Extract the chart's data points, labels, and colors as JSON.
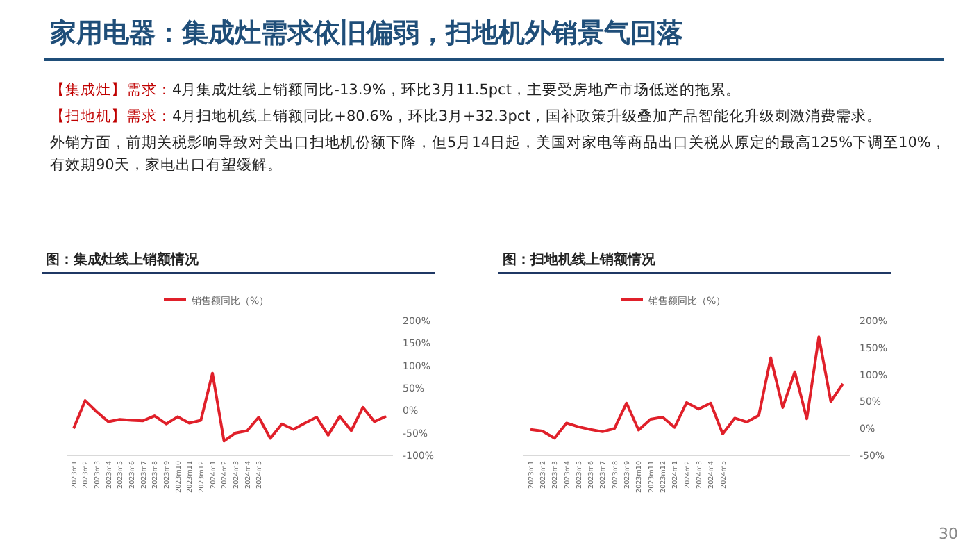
{
  "chart_data": [
    {
      "type": "other",
      "title": "家用电器：集成灶需求依旧偏弱，扫地机外销景气回落",
      "annotations": [
        "【集成灶】需求：4月集成灶线上销额同比-13.9%，环比3月11.5pct，主要受房地产市场低迷的拖累。",
        "【扫地机】需求：4月扫地机线上销额同比+80.6%，环比3月+32.3pct，国补政策升级叠加产品智能化升级刺激消费需求。",
        "外销方面，前期关税影响导致对美出口扫地机份额下降，但5月14日起，美国对家电等商品出口关税从原定的最高125%下调至10%，有效期90天，家电出口有望缓解。",
        "30"
      ]
    },
    {
      "type": "line",
      "title": "图：集成灶线上销额情况",
      "categories": [
        "2023m1",
        "2023m2",
        "2023m3",
        "2023m4",
        "2023m5",
        "2023m6",
        "2023m7",
        "2023m8",
        "2023m9",
        "2023m10",
        "2023m11",
        "2023m12",
        "2024m1",
        "2024m2",
        "2024m3",
        "2024m4",
        "2024m5",
        null,
        null,
        null,
        null,
        null,
        null,
        null,
        null,
        null,
        null,
        null
      ],
      "series": [
        {
          "name": "销售额同比（%）",
          "color": "#e0202a",
          "values": [
            -40,
            22,
            -3,
            -25,
            -20,
            -22,
            -23,
            -12,
            -30,
            -14,
            -28,
            -22,
            83,
            -68,
            -50,
            -45,
            -15,
            -62,
            -30,
            -42,
            -28,
            -15,
            -55,
            -13,
            -45,
            7,
            -25,
            -13
          ]
        }
      ],
      "ylim": [
        -100,
        200
      ],
      "yticks": [
        {
          "value": -100,
          "label": "-100%"
        },
        {
          "value": -50,
          "label": "-50%"
        },
        {
          "value": 0,
          "label": "0%"
        },
        {
          "value": 50,
          "label": "50%"
        },
        {
          "value": 100,
          "label": "100%"
        },
        {
          "value": 150,
          "label": "150%"
        },
        {
          "value": 200,
          "label": "200%"
        }
      ],
      "grid": false,
      "legend": "top",
      "marker": "none"
    },
    {
      "type": "line",
      "title": "图：扫地机线上销额情况",
      "categories": [
        "2023m1",
        "2023m2",
        "2023m3",
        "2023m4",
        "2023m5",
        "2023m6",
        "2023m7",
        "2023m8",
        "2023m9",
        "2023m10",
        "2023m11",
        "2023m12",
        "2024m1",
        "2024m2",
        "2024m3",
        "2024m4",
        "2024m5",
        null,
        null,
        null,
        null,
        null,
        null,
        null,
        null,
        null,
        null
      ],
      "series": [
        {
          "name": "销售额同比（%）",
          "color": "#e0202a",
          "values": [
            -2,
            -5,
            -18,
            10,
            3,
            -2,
            -6,
            0,
            47,
            -3,
            17,
            21,
            2,
            48,
            36,
            47,
            -10,
            19,
            12,
            24,
            131,
            39,
            105,
            18,
            170,
            50,
            83
          ]
        }
      ],
      "ylim": [
        -50,
        200
      ],
      "yticks": [
        {
          "value": -50,
          "label": "-50%"
        },
        {
          "value": 0,
          "label": "0%"
        },
        {
          "value": 50,
          "label": "50%"
        },
        {
          "value": 100,
          "label": "100%"
        },
        {
          "value": 150,
          "label": "150%"
        },
        {
          "value": 200,
          "label": "200%"
        }
      ],
      "grid": false,
      "legend": "top",
      "marker": "none"
    }
  ]
}
